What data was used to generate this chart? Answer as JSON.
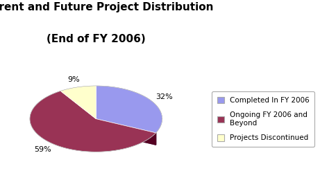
{
  "title_line1": "Current and Future Project Distribution",
  "title_line2": "(End of FY 2006)",
  "slices": [
    32,
    59,
    9
  ],
  "labels": [
    "Completed In FY 2006",
    "Ongoing FY 2006 and\nBeyond",
    "Projects Discontinued"
  ],
  "colors": [
    "#9999EE",
    "#993355",
    "#FFFFCC"
  ],
  "dark_colors": [
    "#555577",
    "#550022",
    "#CCCC99"
  ],
  "pct_labels": [
    "32%",
    "59%",
    "9%"
  ],
  "background_color": "#ffffff",
  "startangle": 90,
  "legend_fontsize": 7.5,
  "title_fontsize": 11
}
